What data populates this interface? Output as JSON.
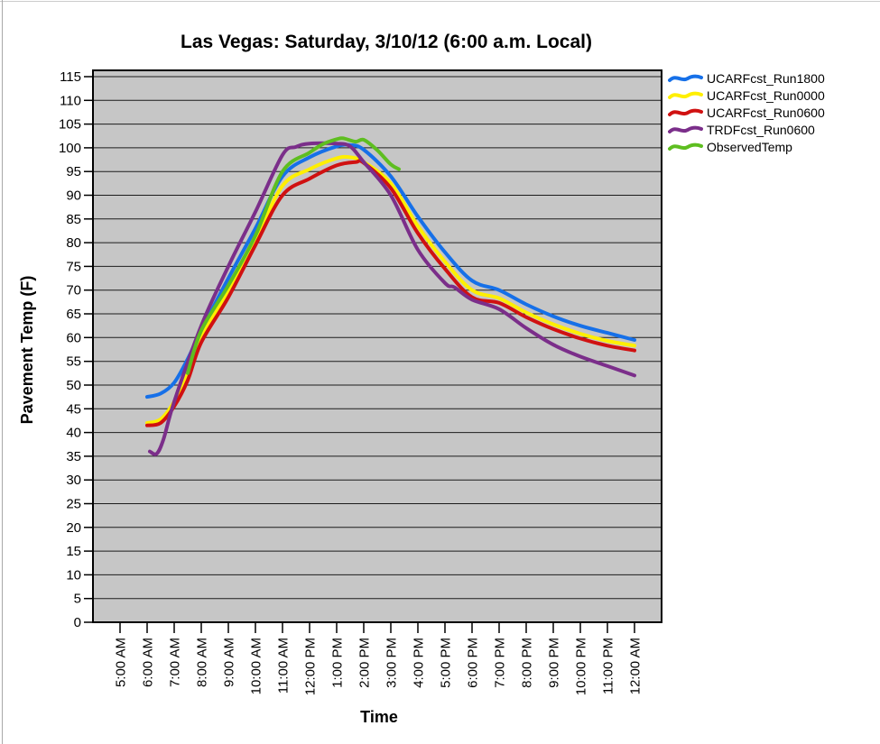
{
  "window": {
    "background": "#ffffff",
    "edge_left_color": "#a8a8a8",
    "edge_top_color": "#cccccc"
  },
  "chart_data": {
    "type": "line",
    "title": "Las Vegas: Saturday, 3/10/12 (6:00 a.m. Local)",
    "xlabel": "Time",
    "ylabel": "Pavement Temp (F)",
    "plot_background": "#c6c6c6",
    "gridline_color": "#1c1c1c",
    "frame_color": "#000000",
    "grid": "horizontal",
    "ylim": [
      0,
      115
    ],
    "y_tick_step": 5,
    "legend_position": "outside-top-right",
    "x_ticks": [
      {
        "hour": 5,
        "label": "5:00 AM"
      },
      {
        "hour": 6,
        "label": "6:00 AM"
      },
      {
        "hour": 7,
        "label": "7:00 AM"
      },
      {
        "hour": 8,
        "label": "8:00 AM"
      },
      {
        "hour": 9,
        "label": "9:00 AM"
      },
      {
        "hour": 10,
        "label": "10:00 AM"
      },
      {
        "hour": 11,
        "label": "11:00 AM"
      },
      {
        "hour": 12,
        "label": "12:00 PM"
      },
      {
        "hour": 13,
        "label": "1:00 PM"
      },
      {
        "hour": 14,
        "label": "2:00 PM"
      },
      {
        "hour": 15,
        "label": "3:00 PM"
      },
      {
        "hour": 16,
        "label": "4:00 PM"
      },
      {
        "hour": 17,
        "label": "5:00 PM"
      },
      {
        "hour": 18,
        "label": "6:00 PM"
      },
      {
        "hour": 19,
        "label": "7:00 PM"
      },
      {
        "hour": 20,
        "label": "8:00 PM"
      },
      {
        "hour": 21,
        "label": "9:00 PM"
      },
      {
        "hour": 22,
        "label": "10:00 PM"
      },
      {
        "hour": 23,
        "label": "11:00 PM"
      },
      {
        "hour": 24,
        "label": "12:00 AM"
      }
    ],
    "series": [
      {
        "name": "UCARFcst_Run1800",
        "color": "#1670e8",
        "points": [
          [
            6,
            47.5
          ],
          [
            6.5,
            48.2
          ],
          [
            7,
            50.5
          ],
          [
            7.5,
            55.5
          ],
          [
            8,
            61.5
          ],
          [
            9,
            72.5
          ],
          [
            10,
            83
          ],
          [
            11,
            94
          ],
          [
            12,
            98
          ],
          [
            13,
            100.3
          ],
          [
            13.5,
            100.6
          ],
          [
            14,
            99.6
          ],
          [
            15,
            94
          ],
          [
            16,
            85.5
          ],
          [
            17,
            78
          ],
          [
            18,
            72
          ],
          [
            19,
            70
          ],
          [
            20,
            67
          ],
          [
            21,
            64.5
          ],
          [
            22,
            62.5
          ],
          [
            23,
            61
          ],
          [
            24,
            59.5
          ]
        ]
      },
      {
        "name": "UCARFcst_Run0000",
        "color": "#ffef00",
        "points": [
          [
            6,
            42
          ],
          [
            6.5,
            42.8
          ],
          [
            7,
            46.5
          ],
          [
            7.5,
            52.5
          ],
          [
            8,
            60
          ],
          [
            9,
            70
          ],
          [
            10,
            80.5
          ],
          [
            11,
            92
          ],
          [
            12,
            95.5
          ],
          [
            13,
            97.8
          ],
          [
            13.5,
            98
          ],
          [
            14,
            97
          ],
          [
            15,
            92.5
          ],
          [
            16,
            83.5
          ],
          [
            17,
            76
          ],
          [
            18,
            70
          ],
          [
            19,
            68.3
          ],
          [
            20,
            65.3
          ],
          [
            21,
            62.8
          ],
          [
            22,
            60.8
          ],
          [
            23,
            59.3
          ],
          [
            24,
            58.3
          ]
        ]
      },
      {
        "name": "UCARFcst_Run0600",
        "color": "#d01111",
        "points": [
          [
            6,
            41.5
          ],
          [
            6.5,
            42
          ],
          [
            7,
            45.5
          ],
          [
            7.5,
            51
          ],
          [
            8,
            59
          ],
          [
            9,
            68.5
          ],
          [
            10,
            79.5
          ],
          [
            11,
            90
          ],
          [
            12,
            93.5
          ],
          [
            13,
            96.3
          ],
          [
            13.7,
            97
          ],
          [
            14,
            96.8
          ],
          [
            15,
            91.5
          ],
          [
            16,
            82
          ],
          [
            17,
            74.5
          ],
          [
            18,
            68.5
          ],
          [
            19,
            67.3
          ],
          [
            20,
            64.3
          ],
          [
            21,
            61.8
          ],
          [
            22,
            59.8
          ],
          [
            23,
            58.3
          ],
          [
            24,
            57.3
          ]
        ]
      },
      {
        "name": "TRDFcst_Run0600",
        "color": "#7b2e8a",
        "points": [
          [
            6.1,
            36
          ],
          [
            6.35,
            35.5
          ],
          [
            6.6,
            38.5
          ],
          [
            7,
            46.5
          ],
          [
            8,
            62.5
          ],
          [
            9,
            75
          ],
          [
            10,
            86.5
          ],
          [
            11,
            98.5
          ],
          [
            11.5,
            100.2
          ],
          [
            12,
            100.9
          ],
          [
            13,
            100.9
          ],
          [
            13.5,
            100.3
          ],
          [
            14,
            97
          ],
          [
            15,
            90
          ],
          [
            16,
            78.5
          ],
          [
            17,
            71.5
          ],
          [
            17.35,
            70.6
          ],
          [
            18,
            68
          ],
          [
            19,
            66
          ],
          [
            20,
            62
          ],
          [
            21,
            58.5
          ],
          [
            22,
            56
          ],
          [
            23,
            54
          ],
          [
            24,
            52
          ]
        ]
      },
      {
        "name": "ObservedTemp",
        "color": "#5ebe20",
        "points": [
          [
            7.5,
            52.5
          ],
          [
            8,
            61.5
          ],
          [
            9,
            71
          ],
          [
            10,
            81.5
          ],
          [
            11,
            95
          ],
          [
            12,
            99
          ],
          [
            12.5,
            100.8
          ],
          [
            13,
            101.8
          ],
          [
            13.25,
            102
          ],
          [
            13.7,
            101.3
          ],
          [
            14,
            101.7
          ],
          [
            14.5,
            99.5
          ],
          [
            15,
            96.5
          ],
          [
            15.3,
            95.5
          ]
        ]
      }
    ]
  }
}
